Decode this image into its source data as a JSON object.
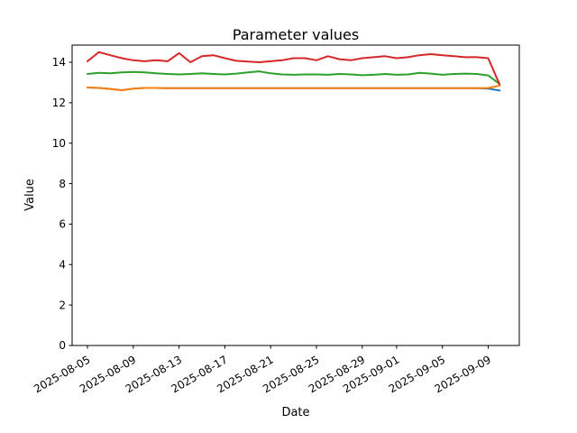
{
  "chart_data": {
    "type": "line",
    "title": "Parameter values",
    "xlabel": "Date",
    "ylabel": "Value",
    "grid": false,
    "legend": "none",
    "background": "#ffffff",
    "axis_color": "#000000",
    "ylim": [
      0,
      14.85
    ],
    "y_ticks": [
      0,
      2,
      4,
      6,
      8,
      10,
      12,
      14
    ],
    "x_tick_labels": [
      "2025-08-05",
      "2025-08-09",
      "2025-08-13",
      "2025-08-17",
      "2025-08-21",
      "2025-08-25",
      "2025-08-29",
      "2025-09-01",
      "2025-09-05",
      "2025-09-09"
    ],
    "dates": [
      "2025-08-05",
      "2025-08-06",
      "2025-08-07",
      "2025-08-08",
      "2025-08-09",
      "2025-08-10",
      "2025-08-11",
      "2025-08-12",
      "2025-08-13",
      "2025-08-14",
      "2025-08-15",
      "2025-08-16",
      "2025-08-17",
      "2025-08-18",
      "2025-08-19",
      "2025-08-20",
      "2025-08-21",
      "2025-08-22",
      "2025-08-23",
      "2025-08-24",
      "2025-08-25",
      "2025-08-26",
      "2025-08-27",
      "2025-08-28",
      "2025-08-29",
      "2025-08-30",
      "2025-08-31",
      "2025-09-01",
      "2025-09-02",
      "2025-09-03",
      "2025-09-04",
      "2025-09-05",
      "2025-09-06",
      "2025-09-07",
      "2025-09-08",
      "2025-09-09",
      "2025-09-10"
    ],
    "series": [
      {
        "name": "series-blue",
        "color": "#1f77b4",
        "values": [
          12.75,
          12.73,
          12.68,
          12.62,
          12.7,
          12.73,
          12.73,
          12.72,
          12.72,
          12.72,
          12.72,
          12.72,
          12.72,
          12.72,
          12.72,
          12.72,
          12.72,
          12.72,
          12.72,
          12.72,
          12.72,
          12.72,
          12.72,
          12.72,
          12.72,
          12.72,
          12.72,
          12.72,
          12.72,
          12.72,
          12.72,
          12.72,
          12.72,
          12.72,
          12.72,
          12.7,
          12.6
        ]
      },
      {
        "name": "series-orange",
        "color": "#ff7f0e",
        "values": [
          12.75,
          12.73,
          12.68,
          12.62,
          12.7,
          12.73,
          12.73,
          12.72,
          12.72,
          12.72,
          12.72,
          12.72,
          12.72,
          12.72,
          12.72,
          12.72,
          12.72,
          12.72,
          12.72,
          12.72,
          12.72,
          12.72,
          12.72,
          12.72,
          12.72,
          12.72,
          12.72,
          12.72,
          12.72,
          12.72,
          12.72,
          12.72,
          12.72,
          12.72,
          12.72,
          12.73,
          12.85
        ]
      },
      {
        "name": "series-green",
        "color": "#2ca02c",
        "values": [
          13.42,
          13.48,
          13.45,
          13.5,
          13.52,
          13.5,
          13.45,
          13.42,
          13.4,
          13.42,
          13.45,
          13.42,
          13.4,
          13.44,
          13.5,
          13.55,
          13.45,
          13.4,
          13.38,
          13.4,
          13.4,
          13.38,
          13.42,
          13.4,
          13.36,
          13.38,
          13.42,
          13.38,
          13.4,
          13.48,
          13.44,
          13.38,
          13.42,
          13.44,
          13.42,
          13.35,
          12.92
        ]
      },
      {
        "name": "series-red",
        "color": "#d62728",
        "values": [
          14.05,
          14.5,
          14.35,
          14.2,
          14.1,
          14.05,
          14.1,
          14.05,
          14.45,
          14.0,
          14.3,
          14.35,
          14.2,
          14.07,
          14.03,
          14.0,
          14.05,
          14.1,
          14.2,
          14.2,
          14.1,
          14.3,
          14.15,
          14.1,
          14.2,
          14.25,
          14.3,
          14.2,
          14.25,
          14.35,
          14.4,
          14.35,
          14.3,
          14.25,
          14.25,
          14.2,
          12.9
        ]
      }
    ]
  }
}
